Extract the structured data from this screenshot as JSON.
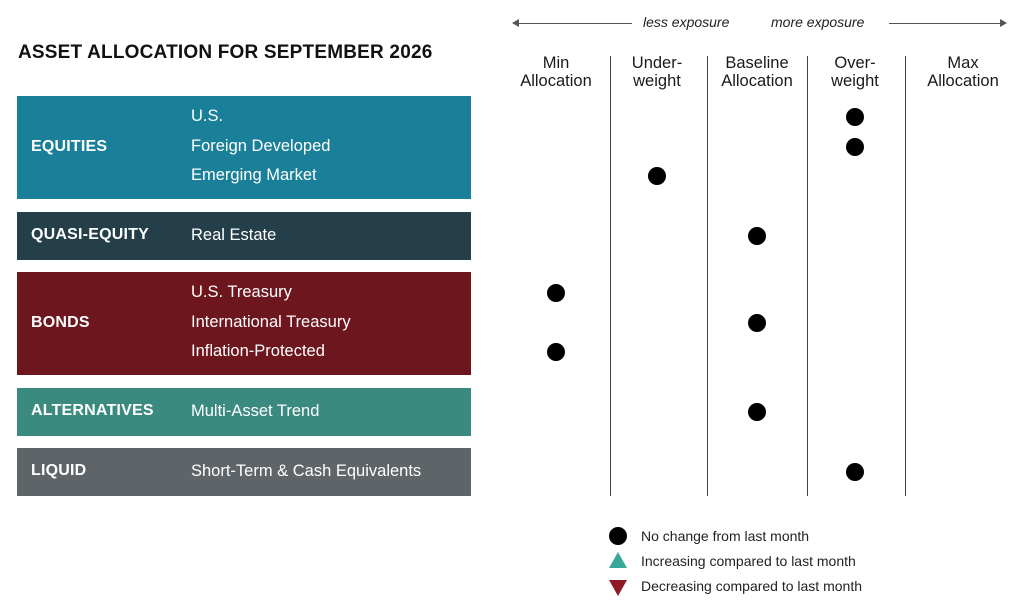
{
  "chart_data": {
    "type": "table",
    "title": "ASSET ALLOCATION FOR SEPTEMBER 2026",
    "exposure_axis": {
      "left_label": "less exposure",
      "right_label": "more exposure"
    },
    "columns": [
      {
        "line1": "Min",
        "line2": "Allocation"
      },
      {
        "line1": "Under-",
        "line2": "weight"
      },
      {
        "line1": "Baseline",
        "line2": "Allocation"
      },
      {
        "line1": "Over-",
        "line2": "weight"
      },
      {
        "line1": "Max",
        "line2": "Allocation"
      }
    ],
    "groups": [
      {
        "label": "EQUITIES",
        "color": "#1a7f99",
        "items": [
          {
            "name": "U.S.",
            "allocation": "Over-weight",
            "change": "none"
          },
          {
            "name": "Foreign Developed",
            "allocation": "Over-weight",
            "change": "none"
          },
          {
            "name": "Emerging Market",
            "allocation": "Under-weight",
            "change": "none"
          }
        ]
      },
      {
        "label": "QUASI-EQUITY",
        "color": "#243e4a",
        "items": [
          {
            "name": "Real Estate",
            "allocation": "Baseline Allocation",
            "change": "none"
          }
        ]
      },
      {
        "label": "BONDS",
        "color": "#6d161e",
        "items": [
          {
            "name": "U.S. Treasury",
            "allocation": "Min Allocation",
            "change": "none"
          },
          {
            "name": "International Treasury",
            "allocation": "Baseline Allocation",
            "change": "none"
          },
          {
            "name": "Inflation-Protected",
            "allocation": "Min Allocation",
            "change": "none"
          }
        ]
      },
      {
        "label": "ALTERNATIVES",
        "color": "#3a8a7f",
        "items": [
          {
            "name": "Multi-Asset Trend",
            "allocation": "Baseline Allocation",
            "change": "none"
          }
        ]
      },
      {
        "label": "LIQUID",
        "color": "#5e6468",
        "items": [
          {
            "name": "Short-Term & Cash Equivalents",
            "allocation": "Over-weight",
            "change": "none"
          }
        ]
      }
    ],
    "legend": [
      {
        "symbol": "dot",
        "label": "No change from last month",
        "color": "#000000"
      },
      {
        "symbol": "triangle-up",
        "label": "Increasing compared to last month",
        "color": "#3aa898"
      },
      {
        "symbol": "triangle-down",
        "label": "Decreasing compared to last month",
        "color": "#8e1b23"
      }
    ]
  }
}
